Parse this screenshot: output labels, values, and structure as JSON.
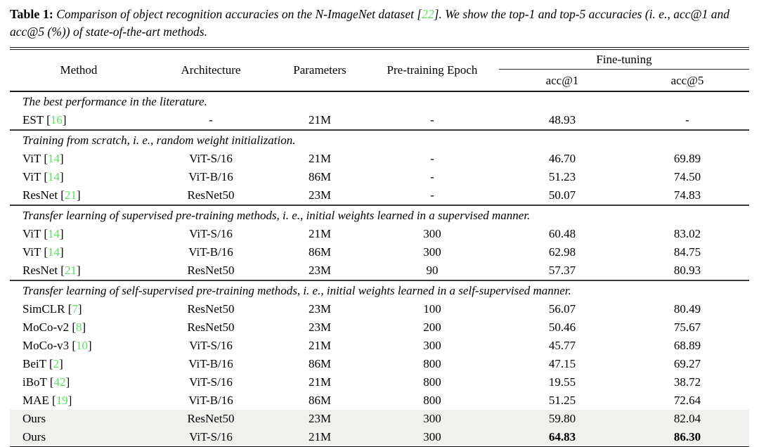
{
  "colors": {
    "citation_green": "#5be05b",
    "highlight_gray": "#f0f0ee",
    "rule_color": "#1c1c1c"
  },
  "caption": {
    "label": "Table 1:",
    "text_before": "Comparison of object recognition accuracies on the N-ImageNet dataset [",
    "cite": "22",
    "text_after": "].  We show the top-1 and top-5 accuracies (i. e., acc@1 and acc@5 (%)) of state-of-the-art methods."
  },
  "table": {
    "columns": {
      "method": "Method",
      "architecture": "Architecture",
      "parameters": "Parameters",
      "epoch": "Pre-training Epoch"
    },
    "group_header": "Fine-tuning",
    "subcolumns": {
      "acc1": "acc@1",
      "acc5": "acc@5"
    },
    "sections": [
      {
        "note": "The best performance in the literature.",
        "rows": [
          {
            "method": "EST",
            "cite": "16",
            "arch": "-",
            "params": "21M",
            "epoch": "-",
            "acc1": "48.93",
            "acc5": "-"
          }
        ]
      },
      {
        "note": "Training from scratch, i. e., random weight initialization.",
        "rows": [
          {
            "method": "ViT",
            "cite": "14",
            "arch": "ViT-S/16",
            "params": "21M",
            "epoch": "-",
            "acc1": "46.70",
            "acc5": "69.89"
          },
          {
            "method": "ViT",
            "cite": "14",
            "arch": "ViT-B/16",
            "params": "86M",
            "epoch": "-",
            "acc1": "51.23",
            "acc5": "74.50"
          },
          {
            "method": "ResNet",
            "cite": "21",
            "arch": "ResNet50",
            "params": "23M",
            "epoch": "-",
            "acc1": "50.07",
            "acc5": "74.83"
          }
        ]
      },
      {
        "note": "Transfer learning of supervised pre-training methods, i. e., initial weights learned in a supervised manner.",
        "rows": [
          {
            "method": "ViT",
            "cite": "14",
            "arch": "ViT-S/16",
            "params": "21M",
            "epoch": "300",
            "acc1": "60.48",
            "acc5": "83.02"
          },
          {
            "method": "ViT",
            "cite": "14",
            "arch": "ViT-B/16",
            "params": "86M",
            "epoch": "300",
            "acc1": "62.98",
            "acc5": "84.75"
          },
          {
            "method": "ResNet",
            "cite": "21",
            "arch": "ResNet50",
            "params": "23M",
            "epoch": "90",
            "acc1": "57.37",
            "acc5": "80.93"
          }
        ]
      },
      {
        "note": "Transfer learning of self-supervised pre-training methods, i. e., initial weights learned in a self-supervised manner.",
        "rows": [
          {
            "method": "SimCLR",
            "cite": "7",
            "arch": "ResNet50",
            "params": "23M",
            "epoch": "100",
            "acc1": "56.07",
            "acc5": "80.49"
          },
          {
            "method": "MoCo-v2",
            "cite": "8",
            "arch": "ResNet50",
            "params": "23M",
            "epoch": "200",
            "acc1": "50.46",
            "acc5": "75.67"
          },
          {
            "method": "MoCo-v3",
            "cite": "10",
            "arch": "ViT-S/16",
            "params": "21M",
            "epoch": "300",
            "acc1": "45.77",
            "acc5": "68.89"
          },
          {
            "method": "BeiT",
            "cite": "2",
            "arch": "ViT-B/16",
            "params": "86M",
            "epoch": "800",
            "acc1": "47.15",
            "acc5": "69.27"
          },
          {
            "method": "iBoT",
            "cite": "42",
            "arch": "ViT-S/16",
            "params": "21M",
            "epoch": "800",
            "acc1": "19.55",
            "acc5": "38.72"
          },
          {
            "method": "MAE",
            "cite": "19",
            "arch": "ViT-B/16",
            "params": "86M",
            "epoch": "800",
            "acc1": "51.25",
            "acc5": "72.64"
          },
          {
            "method": "Ours",
            "cite": "",
            "arch": "ResNet50",
            "params": "23M",
            "epoch": "300",
            "acc1": "59.80",
            "acc5": "82.04",
            "highlight": true
          },
          {
            "method": "Ours",
            "cite": "",
            "arch": "ViT-S/16",
            "params": "21M",
            "epoch": "300",
            "acc1": "64.83",
            "acc5": "86.30",
            "highlight": true,
            "bold": true
          }
        ]
      }
    ]
  }
}
